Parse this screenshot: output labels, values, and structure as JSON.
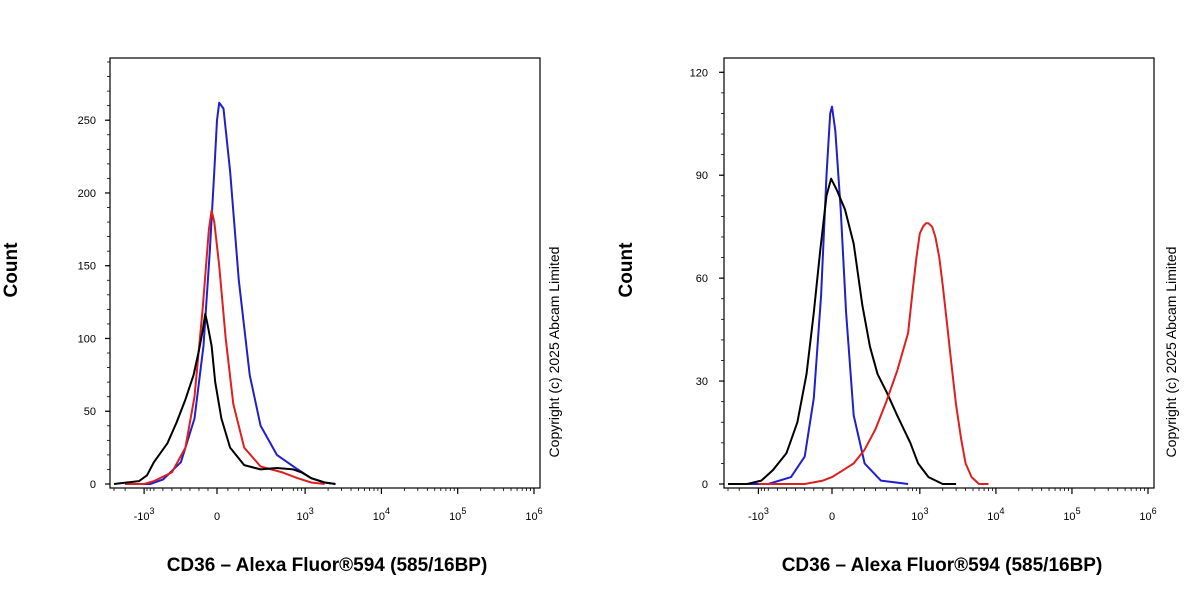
{
  "chart_data": [
    {
      "type": "line",
      "x_scale": "biexponential",
      "xlabel": "CD36 – Alexa Fluor®594 (585/16BP)",
      "ylabel": "Count",
      "ylim": [
        0,
        290
      ],
      "xlim": [
        -3000,
        1000000
      ],
      "yticks": [
        0,
        50,
        100,
        150,
        200,
        250
      ],
      "ytick_labels": [
        "0",
        "50",
        "100",
        "150",
        "200",
        "250"
      ],
      "xticks": [
        -1000,
        0,
        1000,
        10000,
        100000,
        1000000
      ],
      "xtick_labels": [
        {
          "base": "-10",
          "exp": "3"
        },
        {
          "base": "0",
          "exp": ""
        },
        {
          "base": "10",
          "exp": "3"
        },
        {
          "base": "10",
          "exp": "4"
        },
        {
          "base": "10",
          "exp": "5"
        },
        {
          "base": "10",
          "exp": "6"
        }
      ],
      "grid": false,
      "copyright": "Copyright (c) 2025 Abcam Limited",
      "series": [
        {
          "color": "#1f1fcc",
          "points": [
            [
              -2000,
              0
            ],
            [
              -1200,
              0
            ],
            [
              -800,
              0
            ],
            [
              -600,
              3
            ],
            [
              -400,
              15
            ],
            [
              -250,
              45
            ],
            [
              -150,
              95
            ],
            [
              -80,
              160
            ],
            [
              -30,
              215
            ],
            [
              0,
              250
            ],
            [
              20,
              262
            ],
            [
              60,
              258
            ],
            [
              120,
              215
            ],
            [
              200,
              140
            ],
            [
              300,
              75
            ],
            [
              400,
              40
            ],
            [
              550,
              20
            ],
            [
              800,
              10
            ],
            [
              1200,
              4
            ],
            [
              1800,
              1
            ],
            [
              2500,
              0
            ]
          ]
        },
        {
          "color": "#dd1f1f",
          "points": [
            [
              -2000,
              0
            ],
            [
              -1000,
              0
            ],
            [
              -700,
              2
            ],
            [
              -500,
              8
            ],
            [
              -350,
              25
            ],
            [
              -250,
              60
            ],
            [
              -160,
              120
            ],
            [
              -90,
              175
            ],
            [
              -60,
              188
            ],
            [
              -30,
              180
            ],
            [
              20,
              150
            ],
            [
              80,
              100
            ],
            [
              150,
              55
            ],
            [
              250,
              25
            ],
            [
              400,
              12
            ],
            [
              600,
              8
            ],
            [
              800,
              4
            ],
            [
              1200,
              1
            ],
            [
              1800,
              0
            ]
          ]
        },
        {
          "color": "#000000",
          "points": [
            [
              -3000,
              0
            ],
            [
              -1200,
              2
            ],
            [
              -900,
              6
            ],
            [
              -700,
              15
            ],
            [
              -550,
              28
            ],
            [
              -450,
              42
            ],
            [
              -350,
              58
            ],
            [
              -260,
              75
            ],
            [
              -200,
              92
            ],
            [
              -160,
              105
            ],
            [
              -130,
              117
            ],
            [
              -100,
              108
            ],
            [
              -60,
              95
            ],
            [
              -20,
              70
            ],
            [
              40,
              45
            ],
            [
              120,
              25
            ],
            [
              250,
              13
            ],
            [
              400,
              10
            ],
            [
              550,
              11
            ],
            [
              700,
              10
            ],
            [
              900,
              8
            ],
            [
              1200,
              4
            ],
            [
              1800,
              1
            ],
            [
              2500,
              0
            ]
          ]
        }
      ]
    },
    {
      "type": "line",
      "x_scale": "biexponential",
      "xlabel": "CD36 – Alexa Fluor®594 (585/16BP)",
      "ylabel": "Count",
      "ylim": [
        0,
        123
      ],
      "xlim": [
        -3000,
        1000000
      ],
      "yticks": [
        0,
        30,
        60,
        90,
        120
      ],
      "ytick_labels": [
        "0",
        "30",
        "60",
        "90",
        "120"
      ],
      "xticks": [
        -1000,
        0,
        1000,
        10000,
        100000,
        1000000
      ],
      "xtick_labels": [
        {
          "base": "-10",
          "exp": "3"
        },
        {
          "base": "0",
          "exp": ""
        },
        {
          "base": "10",
          "exp": "3"
        },
        {
          "base": "10",
          "exp": "4"
        },
        {
          "base": "10",
          "exp": "5"
        },
        {
          "base": "10",
          "exp": "6"
        }
      ],
      "grid": false,
      "copyright": "Copyright (c) 2025 Abcam Limited",
      "series": [
        {
          "color": "#1f1fcc",
          "points": [
            [
              -2000,
              0
            ],
            [
              -700,
              0
            ],
            [
              -450,
              2
            ],
            [
              -300,
              8
            ],
            [
              -200,
              25
            ],
            [
              -120,
              55
            ],
            [
              -60,
              90
            ],
            [
              -20,
              108
            ],
            [
              0,
              110
            ],
            [
              30,
              103
            ],
            [
              80,
              80
            ],
            [
              130,
              50
            ],
            [
              200,
              20
            ],
            [
              300,
              6
            ],
            [
              450,
              1
            ],
            [
              700,
              0
            ]
          ]
        },
        {
          "color": "#000000",
          "points": [
            [
              -3000,
              0
            ],
            [
              -1500,
              0
            ],
            [
              -900,
              1
            ],
            [
              -650,
              4
            ],
            [
              -500,
              9
            ],
            [
              -380,
              18
            ],
            [
              -280,
              32
            ],
            [
              -200,
              50
            ],
            [
              -130,
              68
            ],
            [
              -60,
              84
            ],
            [
              -10,
              89
            ],
            [
              40,
              86
            ],
            [
              120,
              80
            ],
            [
              200,
              70
            ],
            [
              280,
              52
            ],
            [
              350,
              40
            ],
            [
              420,
              32
            ],
            [
              500,
              27
            ],
            [
              600,
              20
            ],
            [
              750,
              12
            ],
            [
              950,
              6
            ],
            [
              1300,
              2
            ],
            [
              2000,
              0
            ],
            [
              3000,
              0
            ]
          ]
        },
        {
          "color": "#dd1f1f",
          "points": [
            [
              -1000,
              0
            ],
            [
              -300,
              0
            ],
            [
              -100,
              1
            ],
            [
              0,
              2
            ],
            [
              100,
              4
            ],
            [
              200,
              6
            ],
            [
              300,
              10
            ],
            [
              400,
              16
            ],
            [
              500,
              24
            ],
            [
              600,
              33
            ],
            [
              700,
              44
            ],
            [
              800,
              56
            ],
            [
              900,
              66
            ],
            [
              1000,
              73
            ],
            [
              1100,
              75
            ],
            [
              1200,
              76
            ],
            [
              1300,
              76
            ],
            [
              1450,
              75
            ],
            [
              1600,
              72
            ],
            [
              1800,
              66
            ],
            [
              2000,
              58
            ],
            [
              2300,
              46
            ],
            [
              2600,
              35
            ],
            [
              3000,
              23
            ],
            [
              3500,
              13
            ],
            [
              4000,
              6
            ],
            [
              4800,
              2
            ],
            [
              6000,
              0
            ],
            [
              8000,
              0
            ]
          ]
        }
      ]
    }
  ]
}
